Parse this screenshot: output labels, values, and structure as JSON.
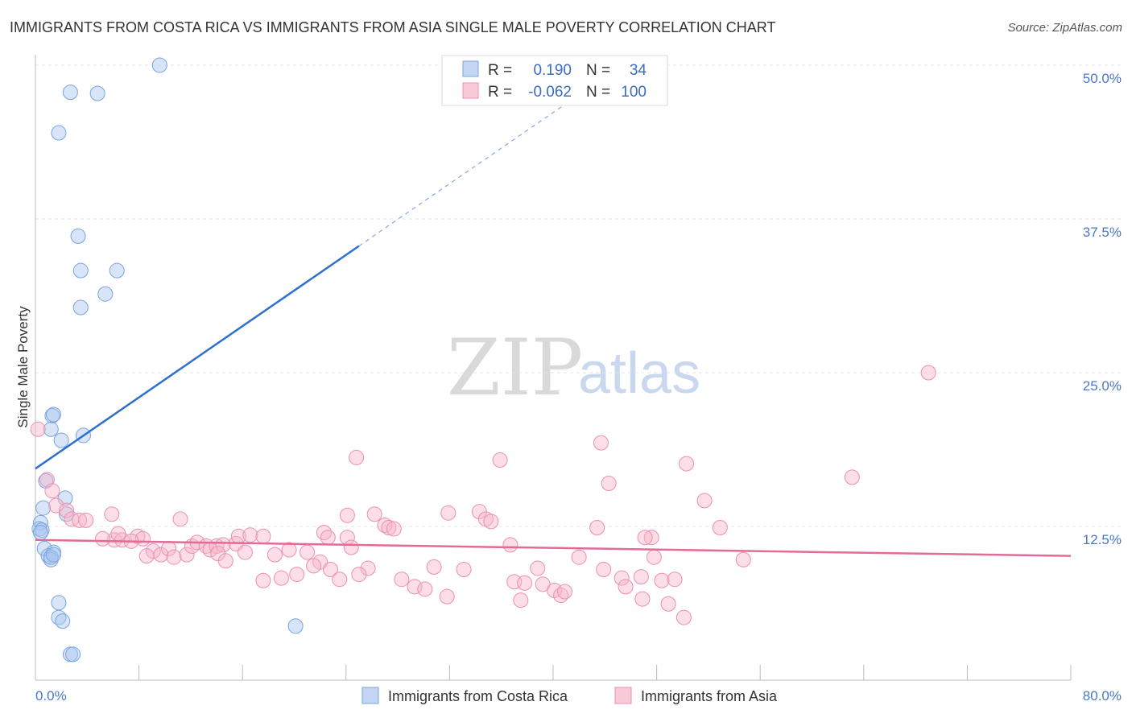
{
  "chart_data": {
    "type": "scatter",
    "title": "IMMIGRANTS FROM COSTA RICA VS IMMIGRANTS FROM ASIA SINGLE MALE POVERTY CORRELATION CHART",
    "source": "Source: ZipAtlas.com",
    "ylabel": "Single Male Poverty",
    "xlabel": "",
    "xlim": [
      0,
      80
    ],
    "ylim": [
      0,
      50
    ],
    "x_tick_labels": [
      "0.0%",
      "80.0%"
    ],
    "y_ticks": [
      {
        "value": 12.5,
        "label": "12.5%"
      },
      {
        "value": 25,
        "label": "25.0%"
      },
      {
        "value": 37.5,
        "label": "37.5%"
      },
      {
        "value": 50,
        "label": "50.0%"
      }
    ],
    "watermark": {
      "zip": "ZIP",
      "atlas": "atlas"
    },
    "legend": {
      "rows": [
        {
          "r_label": "R =",
          "r_value": "0.190",
          "n_label": "N =",
          "n_value": "34",
          "color": "#a9c6ef"
        },
        {
          "r_label": "R =",
          "r_value": "-0.062",
          "n_label": "N =",
          "n_value": "100",
          "color": "#f6b5c9"
        }
      ]
    },
    "series": [
      {
        "name": "Immigrants from Costa Rica",
        "color": "#a9c6ef",
        "stroke": "#7aa3de",
        "line_color": "#2e6fcf",
        "trend": {
          "x0": 0,
          "y0": 17.2,
          "x1": 25,
          "y1": 35.3,
          "dash_to_x": 42,
          "dash_to_y": 47.6
        },
        "points": [
          [
            9.6,
            50.0
          ],
          [
            2.7,
            47.8
          ],
          [
            4.8,
            47.7
          ],
          [
            1.8,
            44.5
          ],
          [
            3.3,
            36.1
          ],
          [
            3.5,
            33.3
          ],
          [
            6.3,
            33.3
          ],
          [
            3.5,
            30.3
          ],
          [
            5.4,
            31.4
          ],
          [
            1.3,
            21.5
          ],
          [
            1.4,
            21.6
          ],
          [
            1.2,
            20.4
          ],
          [
            2.0,
            19.5
          ],
          [
            3.7,
            19.9
          ],
          [
            0.8,
            16.2
          ],
          [
            2.3,
            14.8
          ],
          [
            0.6,
            14.0
          ],
          [
            2.4,
            13.5
          ],
          [
            0.4,
            12.8
          ],
          [
            0.3,
            12.3
          ],
          [
            0.5,
            12.2
          ],
          [
            0.4,
            12.0
          ],
          [
            0.7,
            10.7
          ],
          [
            1.4,
            10.4
          ],
          [
            1.0,
            10.1
          ],
          [
            1.2,
            9.8
          ],
          [
            1.8,
            6.3
          ],
          [
            1.8,
            5.1
          ],
          [
            2.1,
            4.8
          ],
          [
            2.7,
            2.1
          ],
          [
            2.9,
            2.1
          ],
          [
            20.1,
            4.4
          ],
          [
            1.2,
            10.0
          ],
          [
            1.4,
            10.2
          ]
        ]
      },
      {
        "name": "Immigrants from Asia",
        "color": "#f6b5c9",
        "stroke": "#ec8fae",
        "line_color": "#e26b97",
        "trend": {
          "x0": 0,
          "y0": 11.4,
          "x1": 80,
          "y1": 10.1
        },
        "points": [
          [
            0.2,
            20.4
          ],
          [
            0.9,
            16.3
          ],
          [
            1.3,
            15.4
          ],
          [
            1.6,
            14.2
          ],
          [
            2.4,
            13.8
          ],
          [
            2.8,
            13.1
          ],
          [
            3.4,
            13.0
          ],
          [
            3.9,
            13.0
          ],
          [
            5.9,
            13.5
          ],
          [
            11.2,
            13.1
          ],
          [
            6.1,
            11.4
          ],
          [
            6.7,
            11.4
          ],
          [
            5.2,
            11.5
          ],
          [
            7.9,
            11.7
          ],
          [
            8.3,
            11.5
          ],
          [
            6.4,
            11.9
          ],
          [
            7.4,
            11.3
          ],
          [
            9.1,
            10.5
          ],
          [
            9.7,
            10.2
          ],
          [
            10.3,
            10.7
          ],
          [
            8.6,
            10.1
          ],
          [
            10.7,
            10.0
          ],
          [
            11.7,
            10.2
          ],
          [
            12.1,
            10.9
          ],
          [
            12.5,
            11.2
          ],
          [
            13.2,
            10.9
          ],
          [
            13.5,
            10.6
          ],
          [
            14.0,
            10.9
          ],
          [
            14.5,
            11.0
          ],
          [
            14.1,
            10.3
          ],
          [
            14.7,
            9.7
          ],
          [
            15.5,
            11.1
          ],
          [
            15.7,
            11.7
          ],
          [
            16.2,
            10.4
          ],
          [
            16.6,
            11.8
          ],
          [
            17.6,
            11.7
          ],
          [
            18.5,
            10.2
          ],
          [
            19.6,
            10.6
          ],
          [
            21.0,
            10.4
          ],
          [
            22.0,
            9.6
          ],
          [
            22.8,
            9.0
          ],
          [
            23.5,
            8.2
          ],
          [
            21.5,
            9.3
          ],
          [
            20.2,
            8.6
          ],
          [
            19.0,
            8.3
          ],
          [
            17.6,
            8.1
          ],
          [
            22.3,
            12.0
          ],
          [
            22.6,
            11.6
          ],
          [
            24.1,
            11.6
          ],
          [
            24.4,
            10.8
          ],
          [
            24.1,
            13.4
          ],
          [
            24.8,
            18.1
          ],
          [
            25.7,
            9.1
          ],
          [
            25.0,
            8.6
          ],
          [
            26.2,
            13.5
          ],
          [
            27.0,
            12.6
          ],
          [
            27.3,
            12.4
          ],
          [
            27.7,
            12.3
          ],
          [
            28.3,
            8.2
          ],
          [
            29.3,
            7.6
          ],
          [
            30.1,
            7.4
          ],
          [
            30.8,
            9.2
          ],
          [
            31.8,
            6.8
          ],
          [
            31.9,
            13.6
          ],
          [
            33.1,
            9.0
          ],
          [
            34.3,
            13.7
          ],
          [
            34.8,
            13.1
          ],
          [
            35.2,
            12.9
          ],
          [
            35.9,
            17.9
          ],
          [
            36.7,
            11.0
          ],
          [
            37.0,
            8.0
          ],
          [
            37.5,
            6.5
          ],
          [
            37.8,
            7.9
          ],
          [
            38.8,
            9.1
          ],
          [
            39.2,
            7.8
          ],
          [
            40.1,
            7.3
          ],
          [
            40.6,
            6.9
          ],
          [
            40.9,
            7.2
          ],
          [
            42.0,
            10.0
          ],
          [
            43.4,
            12.4
          ],
          [
            43.7,
            19.3
          ],
          [
            43.9,
            9.0
          ],
          [
            44.3,
            16.0
          ],
          [
            45.3,
            8.3
          ],
          [
            45.6,
            7.6
          ],
          [
            46.8,
            8.4
          ],
          [
            46.9,
            6.6
          ],
          [
            47.6,
            11.6
          ],
          [
            47.8,
            10.0
          ],
          [
            48.4,
            8.1
          ],
          [
            48.9,
            6.2
          ],
          [
            49.4,
            8.2
          ],
          [
            50.3,
            17.6
          ],
          [
            50.1,
            5.1
          ],
          [
            47.1,
            11.6
          ],
          [
            51.7,
            14.6
          ],
          [
            52.9,
            12.4
          ],
          [
            54.7,
            9.8
          ],
          [
            63.1,
            16.5
          ],
          [
            69.0,
            25.0
          ]
        ]
      }
    ]
  }
}
